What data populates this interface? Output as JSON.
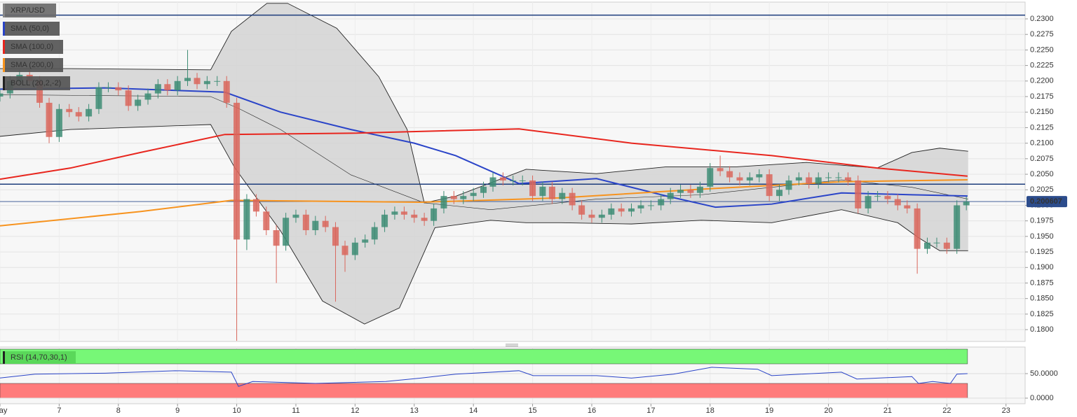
{
  "chart_data": [
    {
      "type": "candlestick",
      "title": "XRP/USD",
      "x": [
        6,
        6.17,
        6.33,
        6.5,
        6.67,
        6.83,
        7,
        7.17,
        7.33,
        7.5,
        7.67,
        7.83,
        8,
        8.17,
        8.33,
        8.5,
        8.67,
        8.83,
        9,
        9.17,
        9.33,
        9.5,
        9.67,
        9.83,
        10,
        10.17,
        10.33,
        10.5,
        10.67,
        10.83,
        11,
        11.17,
        11.33,
        11.5,
        11.67,
        11.83,
        12,
        12.17,
        12.33,
        12.5,
        12.67,
        12.83,
        13,
        13.17,
        13.33,
        13.5,
        13.67,
        13.83,
        14,
        14.17,
        14.33,
        14.5,
        14.67,
        14.83,
        15,
        15.17,
        15.33,
        15.5,
        15.67,
        15.83,
        16,
        16.17,
        16.33,
        16.5,
        16.67,
        16.83,
        17,
        17.17,
        17.33,
        17.5,
        17.67,
        17.83,
        18,
        18.17,
        18.33,
        18.5,
        18.67,
        18.83,
        19,
        19.17,
        19.33,
        19.5,
        19.67,
        19.83,
        20,
        20.17,
        20.33,
        20.5,
        20.67,
        20.83,
        21,
        21.17,
        21.33,
        21.5,
        21.67,
        21.83,
        22,
        22.17,
        22.33
      ],
      "open": [
        0.2175,
        0.218,
        0.22,
        0.221,
        0.22,
        0.2165,
        0.211,
        0.2155,
        0.215,
        0.2143,
        0.2155,
        0.219,
        0.219,
        0.2185,
        0.216,
        0.217,
        0.218,
        0.2195,
        0.2185,
        0.22,
        0.2205,
        0.2195,
        0.22,
        0.22,
        0.2165,
        0.1945,
        0.201,
        0.199,
        0.196,
        0.1935,
        0.198,
        0.1985,
        0.196,
        0.1975,
        0.1965,
        0.1935,
        0.192,
        0.194,
        0.1945,
        0.1965,
        0.1985,
        0.199,
        0.1985,
        0.198,
        0.1975,
        0.1995,
        0.2015,
        0.201,
        0.2015,
        0.202,
        0.203,
        0.2045,
        0.204,
        0.204,
        0.204,
        0.2015,
        0.203,
        0.201,
        0.202,
        0.2,
        0.1985,
        0.198,
        0.1985,
        0.1995,
        0.199,
        0.1995,
        0.2,
        0.2,
        0.201,
        0.202,
        0.2025,
        0.202,
        0.203,
        0.206,
        0.2055,
        0.2045,
        0.204,
        0.2045,
        0.205,
        0.2015,
        0.2025,
        0.204,
        0.2045,
        0.2035,
        0.2045,
        0.2045,
        0.2045,
        0.204,
        0.1995,
        0.2015,
        0.2015,
        0.201,
        0.2,
        0.1995,
        0.193,
        0.194,
        0.194,
        0.193,
        0.2
      ],
      "high": [
        0.2188,
        0.2208,
        0.2218,
        0.2218,
        0.2208,
        0.2173,
        0.2163,
        0.2163,
        0.2158,
        0.2163,
        0.2198,
        0.2198,
        0.2198,
        0.2193,
        0.2178,
        0.2188,
        0.2203,
        0.2203,
        0.2208,
        0.225,
        0.2213,
        0.2208,
        0.2208,
        0.2208,
        0.2173,
        0.2018,
        0.2018,
        0.1998,
        0.1968,
        0.1988,
        0.1993,
        0.1993,
        0.1983,
        0.1983,
        0.1973,
        0.1943,
        0.1948,
        0.1953,
        0.1973,
        0.1993,
        0.1998,
        0.1998,
        0.1993,
        0.1988,
        0.2003,
        0.2023,
        0.2023,
        0.2023,
        0.2028,
        0.2038,
        0.2053,
        0.2053,
        0.2048,
        0.2048,
        0.2048,
        0.2038,
        0.2038,
        0.2028,
        0.2028,
        0.2008,
        0.1993,
        0.1993,
        0.2003,
        0.2003,
        0.2003,
        0.2008,
        0.2008,
        0.2018,
        0.2028,
        0.2033,
        0.2033,
        0.2038,
        0.2068,
        0.208,
        0.2063,
        0.2053,
        0.2053,
        0.2058,
        0.2058,
        0.2033,
        0.2048,
        0.2053,
        0.2053,
        0.2053,
        0.2053,
        0.2053,
        0.2053,
        0.2048,
        0.2023,
        0.2023,
        0.2023,
        0.2018,
        0.2008,
        0.2003,
        0.1948,
        0.1948,
        0.1948,
        0.2008,
        0.2014
      ],
      "low": [
        0.2167,
        0.2172,
        0.2192,
        0.2192,
        0.2157,
        0.21,
        0.2102,
        0.2142,
        0.2135,
        0.2135,
        0.2147,
        0.2182,
        0.2177,
        0.2152,
        0.2152,
        0.2162,
        0.2172,
        0.2177,
        0.2177,
        0.2192,
        0.2187,
        0.2187,
        0.2192,
        0.2157,
        0.1782,
        0.1928,
        0.1982,
        0.1952,
        0.1875,
        0.1927,
        0.1972,
        0.1952,
        0.1952,
        0.1957,
        0.1845,
        0.1893,
        0.1912,
        0.1932,
        0.1937,
        0.1957,
        0.1977,
        0.1977,
        0.1972,
        0.1967,
        0.1967,
        0.1987,
        0.2002,
        0.2002,
        0.2007,
        0.2012,
        0.2022,
        0.2032,
        0.2032,
        0.2032,
        0.2007,
        0.2007,
        0.2002,
        0.2002,
        0.1992,
        0.1977,
        0.1972,
        0.1972,
        0.1977,
        0.1982,
        0.1982,
        0.1987,
        0.1992,
        0.1992,
        0.2002,
        0.2012,
        0.2012,
        0.2012,
        0.2022,
        0.2047,
        0.2037,
        0.2032,
        0.2032,
        0.2037,
        0.2007,
        0.2007,
        0.2017,
        0.2032,
        0.2027,
        0.2027,
        0.2037,
        0.2037,
        0.2032,
        0.1987,
        0.1987,
        0.2007,
        0.2002,
        0.1992,
        0.1987,
        0.189,
        0.1922,
        0.1932,
        0.1922,
        0.1922,
        0.1992
      ],
      "close": [
        0.218,
        0.22,
        0.221,
        0.22,
        0.2165,
        0.211,
        0.2155,
        0.215,
        0.2143,
        0.2155,
        0.219,
        0.219,
        0.2185,
        0.216,
        0.217,
        0.218,
        0.2195,
        0.2185,
        0.22,
        0.2205,
        0.2195,
        0.22,
        0.22,
        0.2165,
        0.1945,
        0.201,
        0.199,
        0.196,
        0.1935,
        0.198,
        0.1985,
        0.196,
        0.1975,
        0.1965,
        0.1935,
        0.192,
        0.194,
        0.1945,
        0.1965,
        0.1985,
        0.199,
        0.1985,
        0.198,
        0.1975,
        0.1995,
        0.2015,
        0.201,
        0.2015,
        0.202,
        0.203,
        0.2045,
        0.204,
        0.204,
        0.204,
        0.2015,
        0.203,
        0.201,
        0.202,
        0.2,
        0.1985,
        0.198,
        0.1985,
        0.1995,
        0.199,
        0.1995,
        0.2,
        0.2,
        0.201,
        0.202,
        0.2025,
        0.202,
        0.203,
        0.206,
        0.2055,
        0.2045,
        0.204,
        0.2045,
        0.205,
        0.2015,
        0.2025,
        0.204,
        0.2045,
        0.2035,
        0.2045,
        0.2045,
        0.2045,
        0.204,
        0.1995,
        0.2015,
        0.2015,
        0.201,
        0.2,
        0.1995,
        0.193,
        0.194,
        0.194,
        0.193,
        0.2,
        0.2006
      ],
      "up_color": "#3d8c74",
      "down_color": "#d9665c",
      "overlays": [
        {
          "name": "SMA (50,0)",
          "color": "#2a44c8",
          "x": [
            6,
            7.78,
            9.8,
            10.74,
            11.93,
            13,
            13.7,
            14.77,
            16.08,
            17.26,
            18.09,
            19.04,
            20.22,
            21.41,
            22.35
          ],
          "values": [
            0.2187,
            0.2189,
            0.2182,
            0.215,
            0.2122,
            0.21,
            0.208,
            0.2035,
            0.2043,
            0.2015,
            0.1997,
            0.2002,
            0.202,
            0.2017,
            0.2015
          ]
        },
        {
          "name": "SMA (100,0)",
          "color": "#e8261e",
          "x": [
            6,
            7.19,
            8.37,
            9.8,
            11.93,
            14.77,
            16.67,
            19.04,
            20.82,
            22.35
          ],
          "values": [
            0.2042,
            0.206,
            0.2085,
            0.2114,
            0.2116,
            0.2123,
            0.21,
            0.208,
            0.206,
            0.2047
          ]
        },
        {
          "name": "SMA (200,0)",
          "color": "#f7931e",
          "x": [
            6,
            8.37,
            9.91,
            13.11,
            15.48,
            17.85,
            20.22,
            22.35
          ],
          "values": [
            0.1967,
            0.199,
            0.2008,
            0.2005,
            0.2012,
            0.2026,
            0.2038,
            0.2041
          ]
        }
      ],
      "bollinger": {
        "name": "BOLL (20,2,-2)",
        "color": "#222222",
        "fill": "#d4d4d4",
        "upper": {
          "x": [
            6,
            7.19,
            9.56,
            9.91,
            10.51,
            10.86,
            11.69,
            12.4,
            12.88,
            13.17,
            13.71,
            14.89,
            16.08,
            17.26,
            18.45,
            19.63,
            20.82,
            21.41,
            21.88,
            22.36
          ],
          "values": [
            0.222,
            0.222,
            0.2218,
            0.228,
            0.2325,
            0.2325,
            0.2285,
            0.2207,
            0.2122,
            0.2004,
            0.2015,
            0.2058,
            0.2051,
            0.2062,
            0.2062,
            0.2069,
            0.206,
            0.2085,
            0.2092,
            0.2087
          ]
        },
        "middle": {
          "x": [
            6,
            9.56,
            10.03,
            10.74,
            11.93,
            13.17,
            14.29,
            16.08,
            17.85,
            20.22,
            21.41,
            22.36
          ],
          "values": [
            0.2178,
            0.2175,
            0.2156,
            0.2122,
            0.2049,
            0.2004,
            0.1993,
            0.201,
            0.2017,
            0.2041,
            0.2029,
            0.201
          ]
        },
        "lower": {
          "x": [
            6,
            7.19,
            9.56,
            9.97,
            10.74,
            11.45,
            12.16,
            12.75,
            13.17,
            13.35,
            14.29,
            14.89,
            15.48,
            16.67,
            17.85,
            19.04,
            20.22,
            21.17,
            21.52,
            21.88,
            22.36
          ],
          "values": [
            0.2111,
            0.2122,
            0.213,
            0.206,
            0.1959,
            0.1846,
            0.1809,
            0.1835,
            0.1925,
            0.1964,
            0.1976,
            0.1972,
            0.1972,
            0.197,
            0.1976,
            0.1972,
            0.1993,
            0.1972,
            0.1948,
            0.1927,
            0.1927
          ]
        }
      },
      "hlines": [
        0.2306,
        0.2034
      ],
      "hline_color": "#1c3c7c",
      "last_price": 0.200607,
      "last_price_color": "#2c4c8c",
      "ylim": [
        0.1781,
        0.2327
      ],
      "yticks": [
        {
          "value": 0.18,
          "label": "0.1800"
        },
        {
          "value": 0.1825,
          "label": "0.1825"
        },
        {
          "value": 0.185,
          "label": "0.1850"
        },
        {
          "value": 0.1875,
          "label": "0.1875"
        },
        {
          "value": 0.19,
          "label": "0.1900"
        },
        {
          "value": 0.1925,
          "label": "0.1925"
        },
        {
          "value": 0.195,
          "label": "0.1950"
        },
        {
          "value": 0.1975,
          "label": "0.1975"
        },
        {
          "value": 0.2,
          "label": "0.2000"
        },
        {
          "value": 0.2025,
          "label": "0.2025"
        },
        {
          "value": 0.205,
          "label": "0.2050"
        },
        {
          "value": 0.2075,
          "label": "0.2075"
        },
        {
          "value": 0.21,
          "label": "0.2100"
        },
        {
          "value": 0.2125,
          "label": "0.2125"
        },
        {
          "value": 0.215,
          "label": "0.2150"
        },
        {
          "value": 0.2175,
          "label": "0.2175"
        },
        {
          "value": 0.22,
          "label": "0.2200"
        },
        {
          "value": 0.2225,
          "label": "0.2225"
        },
        {
          "value": 0.225,
          "label": "0.2250"
        },
        {
          "value": 0.2275,
          "label": "0.2275"
        },
        {
          "value": 0.23,
          "label": "0.2300"
        }
      ],
      "xlim": [
        6,
        23.323
      ],
      "xticks": [
        {
          "value": 6,
          "label": "May"
        },
        7,
        8,
        9,
        10,
        11,
        12,
        13,
        14,
        15,
        16,
        17,
        18,
        19,
        20,
        21,
        22,
        23
      ],
      "grid": true
    },
    {
      "type": "line",
      "title": "RSI (14,70,30,1)",
      "zones": [
        {
          "from": 70,
          "to": 100,
          "color": "#77f777"
        },
        {
          "from": 0,
          "to": 30,
          "color": "#ff7b7b"
        }
      ],
      "series": [
        {
          "name": "RSI (14,70,30,1)",
          "color": "#2a44c8",
          "x": [
            6,
            6.59,
            7.78,
            8.96,
            9.91,
            10.03,
            10.27,
            11.33,
            12.52,
            13.11,
            13.7,
            14.77,
            15.01,
            16.08,
            16.67,
            17.38,
            18.03,
            18.8,
            19.04,
            20.22,
            20.48,
            21.41,
            21.52,
            21.76,
            22.06,
            22.17,
            22.35
          ],
          "values": [
            41,
            49,
            51,
            56,
            53,
            24,
            34,
            30,
            34,
            41,
            49,
            56,
            46,
            46,
            41,
            49,
            63,
            59,
            46,
            53,
            39,
            44,
            30,
            34,
            30,
            49,
            50
          ]
        }
      ],
      "ylim": [
        -11.4,
        104.3
      ],
      "yticks": [
        {
          "value": 0,
          "label": "0.0000"
        },
        {
          "value": 50,
          "label": "50.0000"
        }
      ]
    }
  ]
}
